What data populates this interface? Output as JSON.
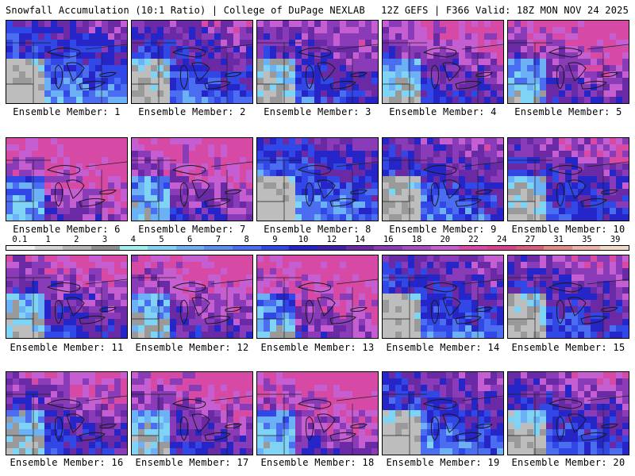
{
  "header": {
    "title": "Snowfall Accumulation (10:1 Ratio) | College of DuPage NEXLAB",
    "run_info": "12Z GEFS | F366 Valid: 18Z MON NOV 24 2025"
  },
  "colorscale": {
    "ticks": [
      "0.1",
      "1",
      "2",
      "3",
      "4",
      "5",
      "6",
      "7",
      "8",
      "9",
      "10",
      "12",
      "14",
      "16",
      "18",
      "20",
      "22",
      "24",
      "27",
      "31",
      "35",
      "39"
    ],
    "colors": [
      "#f2f2f2",
      "#d4d4d4",
      "#b4b4b4",
      "#8f8f8f",
      "#a0f0f0",
      "#7fd3f5",
      "#6cb0f5",
      "#5990f0",
      "#4a6eef",
      "#3147e6",
      "#2525c8",
      "#3f22a8",
      "#6a2aa5",
      "#8a3bb8",
      "#a84cc6",
      "#c55ed0",
      "#d64aa6",
      "#d8418f",
      "#d85d7d",
      "#e08a84",
      "#eab3a6",
      "#f2d9c5"
    ]
  },
  "members": [
    {
      "label": "Ensemble Member: 1"
    },
    {
      "label": "Ensemble Member: 2"
    },
    {
      "label": "Ensemble Member: 3"
    },
    {
      "label": "Ensemble Member: 4"
    },
    {
      "label": "Ensemble Member: 5"
    },
    {
      "label": "Ensemble Member: 6"
    },
    {
      "label": "Ensemble Member: 7"
    },
    {
      "label": "Ensemble Member: 8"
    },
    {
      "label": "Ensemble Member: 9"
    },
    {
      "label": "Ensemble Member: 10"
    },
    {
      "label": "Ensemble Member: 11"
    },
    {
      "label": "Ensemble Member: 12"
    },
    {
      "label": "Ensemble Member: 13"
    },
    {
      "label": "Ensemble Member: 14"
    },
    {
      "label": "Ensemble Member: 15"
    },
    {
      "label": "Ensemble Member: 16"
    },
    {
      "label": "Ensemble Member: 17"
    },
    {
      "label": "Ensemble Member: 18"
    },
    {
      "label": "Ensemble Member: 19"
    },
    {
      "label": "Ensemble Member: 20"
    }
  ]
}
